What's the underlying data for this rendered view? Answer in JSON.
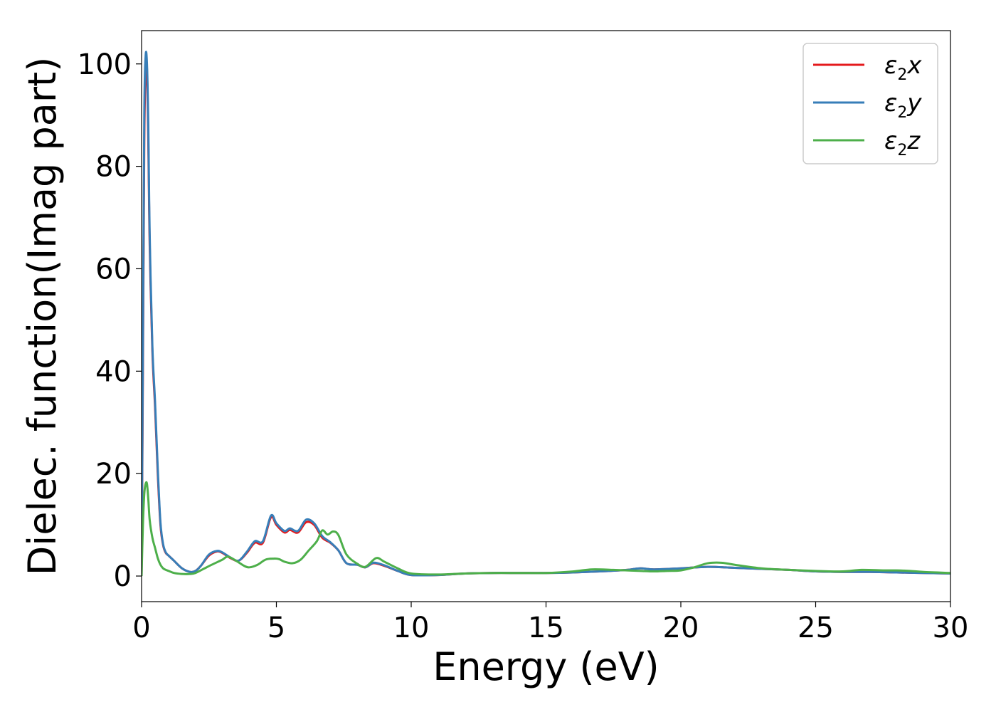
{
  "chart_data": {
    "type": "line",
    "title": "",
    "xlabel": "Energy (eV)",
    "ylabel": "Dielec. function(Imag part)",
    "xlim": [
      0,
      30
    ],
    "ylim": [
      -5,
      106.5
    ],
    "xticks": [
      0,
      5,
      10,
      15,
      20,
      25,
      30
    ],
    "xtick_labels": [
      "0",
      "5",
      "10",
      "15",
      "20",
      "25",
      "30"
    ],
    "yticks": [
      0,
      20,
      40,
      60,
      80,
      100
    ],
    "ytick_labels": [
      "0",
      "20",
      "40",
      "60",
      "80",
      "100"
    ],
    "grid": false,
    "legend_position": "top-right",
    "series": [
      {
        "name": "ε2x",
        "symbol": "ε",
        "sub": "2",
        "axis": "x",
        "color": "#e41a1c",
        "x": [
          0,
          0.05,
          0.1,
          0.15,
          0.2,
          0.25,
          0.3,
          0.4,
          0.5,
          0.6,
          0.7,
          0.8,
          0.9,
          1.0,
          1.2,
          1.5,
          1.8,
          2.0,
          2.2,
          2.5,
          2.8,
          3.0,
          3.3,
          3.6,
          3.9,
          4.2,
          4.5,
          4.8,
          5.0,
          5.3,
          5.5,
          5.8,
          6.1,
          6.4,
          6.7,
          7.0,
          7.3,
          7.6,
          8.0,
          8.3,
          8.6,
          9.0,
          9.5,
          10.0,
          11,
          12,
          13,
          14,
          15,
          16,
          17,
          18,
          18.5,
          19,
          20,
          21,
          22,
          23,
          24,
          25,
          26,
          27,
          28,
          29,
          30
        ],
        "y": [
          0,
          40,
          85,
          98,
          99,
          85,
          65,
          44,
          33,
          20,
          10,
          6,
          4.5,
          4,
          3,
          1.5,
          0.8,
          1,
          2,
          4,
          4.8,
          4.5,
          3.5,
          3,
          4.5,
          6.5,
          6.5,
          11.5,
          10,
          8.5,
          9,
          8.5,
          10.5,
          10,
          7.5,
          6.5,
          5,
          2.5,
          2.2,
          1.7,
          2.5,
          2,
          1,
          0.2,
          0.2,
          0.5,
          0.6,
          0.6,
          0.6,
          0.7,
          0.9,
          1.2,
          1.5,
          1.3,
          1.5,
          1.8,
          1.6,
          1.4,
          1.2,
          0.9,
          0.8,
          0.8,
          0.7,
          0.6,
          0.5
        ]
      },
      {
        "name": "ε2y",
        "symbol": "ε",
        "sub": "2",
        "axis": "y",
        "color": "#377eb8",
        "x": [
          0,
          0.05,
          0.1,
          0.15,
          0.2,
          0.25,
          0.3,
          0.4,
          0.5,
          0.6,
          0.7,
          0.8,
          0.9,
          1.0,
          1.2,
          1.5,
          1.8,
          2.0,
          2.2,
          2.5,
          2.8,
          3.0,
          3.3,
          3.6,
          3.9,
          4.2,
          4.5,
          4.8,
          5.0,
          5.3,
          5.5,
          5.8,
          6.1,
          6.4,
          6.7,
          7.0,
          7.3,
          7.6,
          8.0,
          8.3,
          8.6,
          9.0,
          9.5,
          10.0,
          11,
          12,
          13,
          14,
          15,
          16,
          17,
          18,
          18.5,
          19,
          20,
          21,
          22,
          23,
          24,
          25,
          26,
          27,
          28,
          29,
          30
        ],
        "y": [
          0,
          45,
          90,
          101.5,
          100,
          88,
          67,
          45,
          34,
          21,
          10.5,
          6.2,
          4.6,
          4,
          3,
          1.5,
          0.8,
          1,
          2,
          4.2,
          4.9,
          4.6,
          3.6,
          3,
          4.7,
          6.8,
          6.8,
          11.8,
          10.3,
          8.8,
          9.3,
          8.8,
          11,
          10.3,
          7.8,
          6.6,
          5,
          2.5,
          2.2,
          1.7,
          2.6,
          2.1,
          1,
          0.2,
          0.2,
          0.5,
          0.6,
          0.6,
          0.6,
          0.7,
          0.9,
          1.2,
          1.5,
          1.3,
          1.5,
          1.8,
          1.6,
          1.4,
          1.2,
          0.9,
          0.8,
          0.8,
          0.7,
          0.6,
          0.5
        ]
      },
      {
        "name": "ε2z",
        "symbol": "ε",
        "sub": "2",
        "axis": "z",
        "color": "#4daf4a",
        "x": [
          0,
          0.05,
          0.1,
          0.15,
          0.2,
          0.25,
          0.3,
          0.4,
          0.5,
          0.6,
          0.7,
          0.8,
          0.9,
          1.0,
          1.2,
          1.5,
          1.8,
          2.0,
          2.3,
          2.6,
          3.0,
          3.2,
          3.5,
          3.8,
          4.0,
          4.3,
          4.6,
          4.9,
          5.1,
          5.3,
          5.6,
          5.9,
          6.2,
          6.5,
          6.7,
          6.9,
          7.1,
          7.3,
          7.6,
          8.0,
          8.3,
          8.7,
          9.0,
          9.5,
          10.0,
          11,
          12,
          13,
          14,
          15,
          16,
          16.7,
          17.5,
          18,
          18.5,
          19,
          19.5,
          20,
          20.5,
          21,
          21.5,
          22,
          23,
          24,
          25,
          26,
          26.7,
          27.5,
          28,
          28.5,
          29,
          30
        ],
        "y": [
          0,
          10,
          16,
          18,
          18,
          15,
          11,
          7.5,
          5.5,
          3.5,
          2.2,
          1.5,
          1.2,
          1,
          0.6,
          0.4,
          0.4,
          0.6,
          1.4,
          2.2,
          3.2,
          3.8,
          3,
          2,
          1.7,
          2.2,
          3.2,
          3.4,
          3.3,
          2.8,
          2.5,
          3.2,
          5,
          6.8,
          8.9,
          8.1,
          8.7,
          8,
          4.2,
          2.4,
          1.8,
          3.5,
          2.8,
          1.5,
          0.5,
          0.3,
          0.5,
          0.6,
          0.6,
          0.6,
          0.9,
          1.3,
          1.2,
          1.1,
          1.0,
          0.9,
          1.0,
          1.1,
          1.7,
          2.5,
          2.6,
          2.2,
          1.5,
          1.2,
          1.0,
          0.9,
          1.2,
          1.1,
          1.1,
          1.0,
          0.8,
          0.6
        ]
      }
    ]
  }
}
